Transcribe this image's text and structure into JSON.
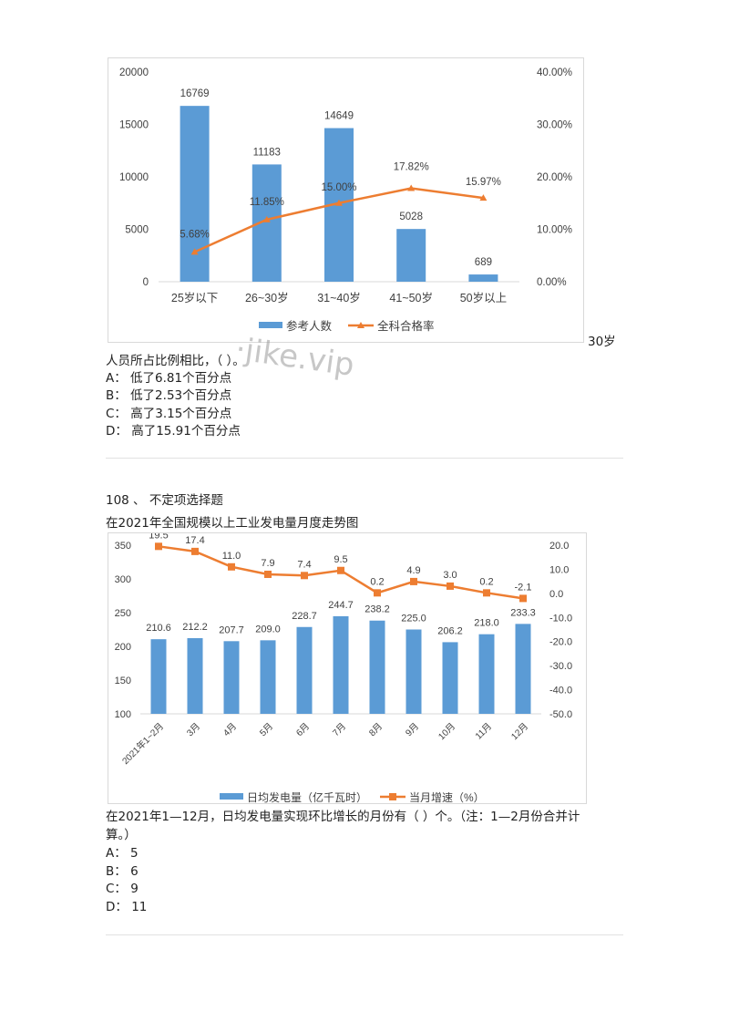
{
  "question1": {
    "stem_tail_right": "30岁",
    "stem_line": "人员所占比例相比，（  ）。",
    "options": [
      {
        "key": "A：",
        "text": "低了6.81个百分点"
      },
      {
        "key": "B：",
        "text": "低了2.53个百分点"
      },
      {
        "key": "C：",
        "text": "高了3.15个百分点"
      },
      {
        "key": "D：",
        "text": "高了15.91个百分点"
      }
    ]
  },
  "watermark": "·jike.vip",
  "question2": {
    "number": "108 、 不定项选择题",
    "chart_title": "在2021年全国规模以上工业发电量月度走势图",
    "stem_line1": "在2021年1—12月，日均发电量实现环比增长的月份有（  ）个。（注：1—2月份合并计",
    "stem_line2": "算。）",
    "options": [
      {
        "key": "A：",
        "text": "5"
      },
      {
        "key": "B：",
        "text": "6"
      },
      {
        "key": "C：",
        "text": "9"
      },
      {
        "key": "D：",
        "text": "11"
      }
    ]
  },
  "colors": {
    "bar": "#5b9bd5",
    "line": "#ed7d31",
    "axis": "#d9d9d9",
    "text": "#404040"
  },
  "chart_data": [
    {
      "type": "bar+line",
      "title": "",
      "categories": [
        "25岁以下",
        "26~30岁",
        "31~40岁",
        "41~50岁",
        "50岁以上"
      ],
      "series": [
        {
          "name": "参考人数",
          "type": "bar",
          "axis": "left",
          "values": [
            16769,
            11183,
            14649,
            5028,
            689
          ]
        },
        {
          "name": "全科合格率",
          "type": "line",
          "axis": "right",
          "values": [
            5.68,
            11.85,
            15.0,
            17.82,
            15.97
          ],
          "labels": [
            "5.68%",
            "11.85%",
            "15.00%",
            "17.82%",
            "15.97%"
          ]
        }
      ],
      "left_axis": {
        "ylim": [
          0,
          20000
        ],
        "ticks": [
          "0",
          "5000",
          "10000",
          "15000",
          "20000"
        ]
      },
      "right_axis": {
        "ylim": [
          0,
          40
        ],
        "ticks": [
          "0.00%",
          "10.00%",
          "20.00%",
          "30.00%",
          "40.00%"
        ]
      },
      "legend": {
        "position": "bottom",
        "entries": [
          "参考人数",
          "全科合格率"
        ]
      },
      "grid": false
    },
    {
      "type": "bar+line",
      "title": "在2021年全国规模以上工业发电量月度走势图",
      "categories": [
        "2021年1~2月",
        "3月",
        "4月",
        "5月",
        "6月",
        "7月",
        "8月",
        "9月",
        "10月",
        "11月",
        "12月"
      ],
      "series": [
        {
          "name": "日均发电量（亿千瓦时）",
          "type": "bar",
          "axis": "left",
          "values": [
            210.6,
            212.2,
            207.7,
            209.0,
            228.7,
            244.7,
            238.2,
            225.0,
            206.2,
            218.0,
            233.3
          ],
          "labels": [
            "210.6",
            "212.2",
            "207.7",
            "209.0",
            "228.7",
            "244.7",
            "238.2",
            "225.0",
            "206.2",
            "218.0",
            "233.3"
          ]
        },
        {
          "name": "当月增速（%）",
          "type": "line",
          "axis": "right",
          "values": [
            19.5,
            17.4,
            11.0,
            7.9,
            7.4,
            9.5,
            0.2,
            4.9,
            3.0,
            0.2,
            -2.1
          ],
          "labels": [
            "19.5",
            "17.4",
            "11.0",
            "7.9",
            "7.4",
            "9.5",
            "0.2",
            "4.9",
            "3.0",
            "0.2",
            "-2.1"
          ]
        }
      ],
      "left_axis": {
        "ylim": [
          100,
          350
        ],
        "ticks": [
          "100",
          "150",
          "200",
          "250",
          "300",
          "350"
        ]
      },
      "right_axis": {
        "ylim": [
          -50,
          20
        ],
        "ticks": [
          "-50.0",
          "-40.0",
          "-30.0",
          "-20.0",
          "-10.0",
          "0.0",
          "10.0",
          "20.0"
        ]
      },
      "legend": {
        "position": "bottom",
        "entries": [
          "日均发电量（亿千瓦时）",
          "当月增速（%）"
        ]
      },
      "grid": false
    }
  ]
}
